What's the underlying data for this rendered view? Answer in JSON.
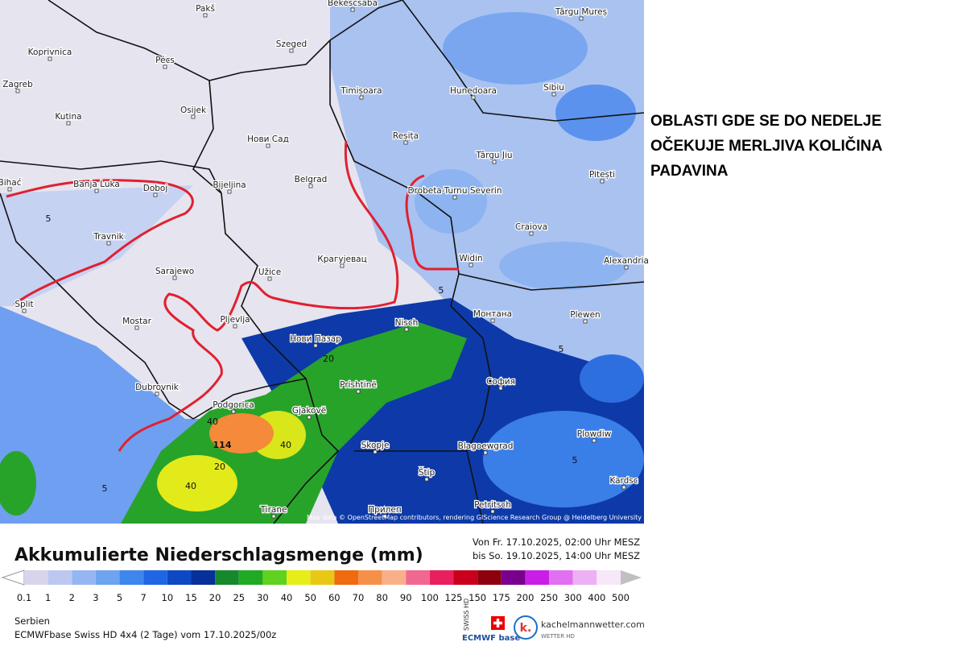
{
  "map": {
    "cities": [
      "Pakš",
      "Békéscsaba",
      "Târgu Mureș",
      "Koprivnica",
      "Pécs",
      "Szeged",
      "Zagreb",
      "Osijek",
      "Timișoara",
      "Hunedoara",
      "Sibiu",
      "Kutina",
      "Нови Сад",
      "Reșița",
      "Târgu Jiu",
      "Bihać",
      "Banja Luka",
      "Doboj",
      "Bijeljina",
      "Belgrad",
      "Drobeta-Turnu Severin",
      "Pitești",
      "Travnik",
      "Craiova",
      "Sarajewo",
      "Užice",
      "Крагујевац",
      "Widin",
      "Alexandria",
      "Split",
      "Mostar",
      "Pljevlja",
      "Nisch",
      "Монтана",
      "Plewen",
      "Нови Пазар",
      "Dubrovnik",
      "Prishtinë",
      "София",
      "Podgorica",
      "Gjakovë",
      "Plowdiw",
      "Skopje",
      "Blagoewgrad",
      "Štip",
      "Kardsc",
      "Tirane",
      "Прилеп",
      "Petritsch"
    ],
    "contour_labels": [
      "114",
      "40",
      "40",
      "40",
      "20",
      "20",
      "5",
      "5",
      "5",
      "5",
      "5"
    ],
    "attribution": "Map data © OpenStreetMap contributors, rendering GIScience Research Group @ Heidelberg University"
  },
  "annotation": [
    "OBLASTI GDE SE DO NEDELJE",
    "OČEKUJE MERLJIVA KOLIČINA",
    "PADAVINA"
  ],
  "legend": {
    "title": "Akkumulierte Niederschlagsmenge (mm)",
    "period": [
      "Von Fr. 17.10.2025, 02:00 Uhr MESZ",
      "bis So. 19.10.2025, 14:00 Uhr MESZ"
    ],
    "items": [
      {
        "label": "0.1",
        "color": "#d8d4ec"
      },
      {
        "label": "1",
        "color": "#bcc8f0"
      },
      {
        "label": "2",
        "color": "#95b6f2"
      },
      {
        "label": "3",
        "color": "#6ea3f0"
      },
      {
        "label": "5",
        "color": "#3e86ee"
      },
      {
        "label": "7",
        "color": "#1e66e4"
      },
      {
        "label": "10",
        "color": "#0f48c3"
      },
      {
        "label": "15",
        "color": "#08309a"
      },
      {
        "label": "20",
        "color": "#15892b"
      },
      {
        "label": "25",
        "color": "#20aa24"
      },
      {
        "label": "30",
        "color": "#5ed21e"
      },
      {
        "label": "40",
        "color": "#e6ee18"
      },
      {
        "label": "50",
        "color": "#e8c814"
      },
      {
        "label": "60",
        "color": "#f06a10"
      },
      {
        "label": "70",
        "color": "#f59048"
      },
      {
        "label": "80",
        "color": "#f8b08a"
      },
      {
        "label": "90",
        "color": "#f06890"
      },
      {
        "label": "100",
        "color": "#e82060"
      },
      {
        "label": "125",
        "color": "#c8001c"
      },
      {
        "label": "150",
        "color": "#8c0010"
      },
      {
        "label": "175",
        "color": "#78008c"
      },
      {
        "label": "200",
        "color": "#c81ee8"
      },
      {
        "label": "250",
        "color": "#e070f0"
      },
      {
        "label": "300",
        "color": "#eeb0f4"
      },
      {
        "label": "400",
        "color": "#f6e8f8"
      },
      {
        "label": "500",
        "color": "#c0c0c0"
      }
    ]
  },
  "footer": {
    "region": "Serbien",
    "model": "ECMWFbase Swiss HD 4x4 (2 Tage) vom 17.10.2025/00z",
    "logo_swiss": "SWISS HD",
    "logo_ecmwf": "ECMWF base",
    "logo_k": "k.",
    "site": "kachelmannwetter.com",
    "site_sub": "WETTER HD"
  }
}
